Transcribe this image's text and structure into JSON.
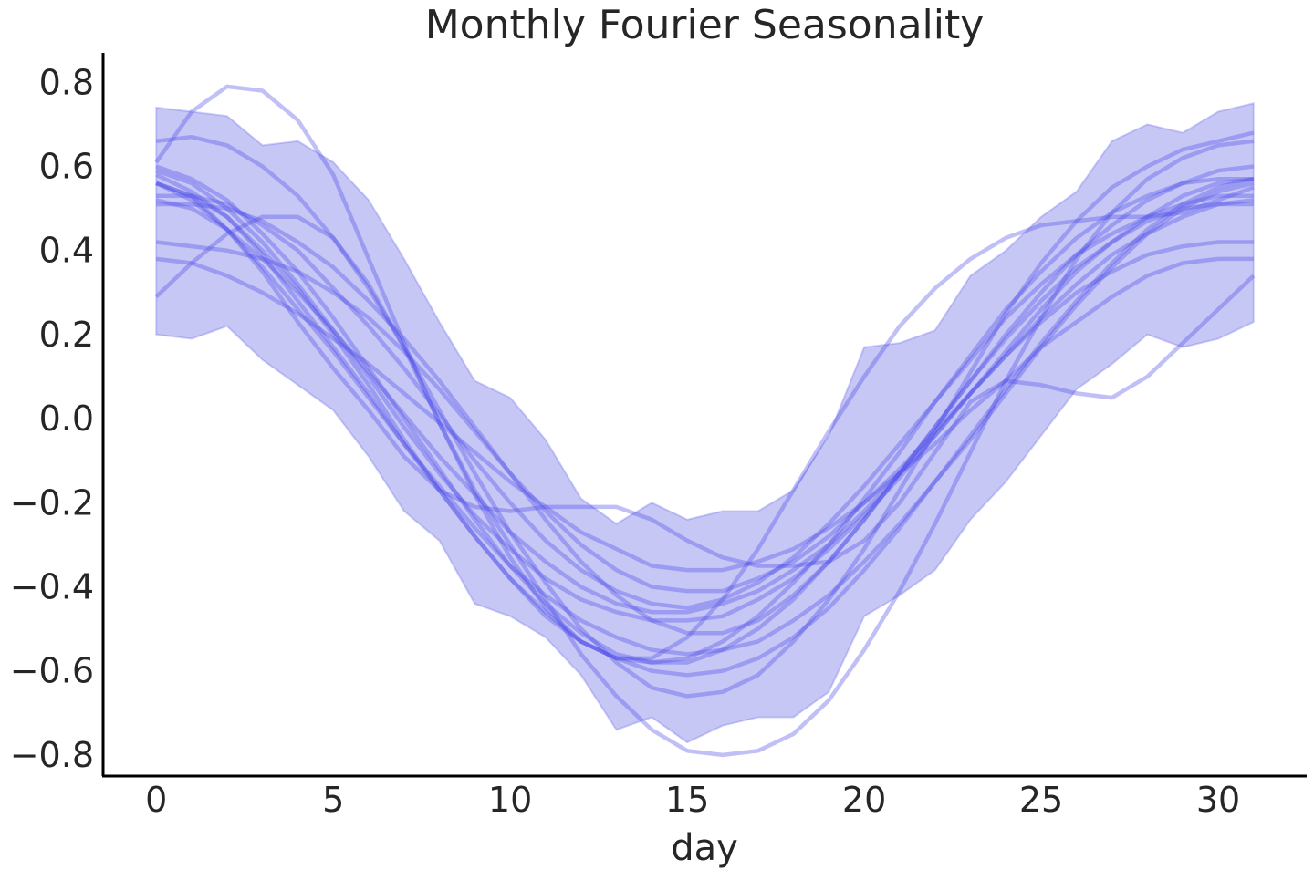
{
  "chart_data": {
    "type": "line",
    "title": "Monthly Fourier Seasonality",
    "xlabel": "day",
    "ylabel": "",
    "xlim": [
      -1.5,
      32.5
    ],
    "ylim": [
      -0.85,
      0.87
    ],
    "xticks": [
      0,
      5,
      10,
      15,
      20,
      25,
      30
    ],
    "yticks": [
      0.8,
      0.6,
      0.4,
      0.2,
      0.0,
      -0.2,
      -0.4,
      -0.6,
      -0.8
    ],
    "ytick_labels": [
      "0.8",
      "0.6",
      "0.4",
      "0.2",
      "0.0",
      "−0.2",
      "−0.4",
      "−0.6",
      "−0.8"
    ],
    "grid": false,
    "colors": {
      "line": "#4a4ae8",
      "band": "#9999ee",
      "axis": "#000000"
    },
    "x": [
      0,
      1,
      2,
      3,
      4,
      5,
      6,
      7,
      8,
      9,
      10,
      11,
      12,
      13,
      14,
      15,
      16,
      17,
      18,
      19,
      20,
      21,
      22,
      23,
      24,
      25,
      26,
      27,
      28,
      29,
      30,
      31
    ],
    "band": {
      "upper": [
        0.74,
        0.73,
        0.72,
        0.65,
        0.66,
        0.61,
        0.52,
        0.38,
        0.23,
        0.09,
        0.05,
        -0.05,
        -0.19,
        -0.25,
        -0.2,
        -0.24,
        -0.22,
        -0.22,
        -0.17,
        -0.04,
        0.17,
        0.18,
        0.21,
        0.34,
        0.4,
        0.48,
        0.54,
        0.66,
        0.7,
        0.68,
        0.73,
        0.75
      ],
      "lower": [
        0.2,
        0.19,
        0.22,
        0.14,
        0.08,
        0.02,
        -0.09,
        -0.22,
        -0.29,
        -0.44,
        -0.47,
        -0.52,
        -0.61,
        -0.74,
        -0.71,
        -0.77,
        -0.73,
        -0.71,
        -0.71,
        -0.65,
        -0.47,
        -0.42,
        -0.36,
        -0.24,
        -0.15,
        -0.04,
        0.07,
        0.13,
        0.2,
        0.17,
        0.19,
        0.23
      ]
    },
    "series": [
      {
        "values": [
          0.61,
          0.73,
          0.79,
          0.78,
          0.71,
          0.58,
          0.38,
          0.18,
          -0.01,
          -0.17,
          -0.3,
          -0.43,
          -0.56,
          -0.66,
          -0.74,
          -0.79,
          -0.8,
          -0.79,
          -0.75,
          -0.67,
          -0.55,
          -0.41,
          -0.25,
          -0.08,
          0.09,
          0.24,
          0.38,
          0.49,
          0.57,
          0.62,
          0.65,
          0.66
        ]
      },
      {
        "values": [
          0.66,
          0.67,
          0.65,
          0.6,
          0.53,
          0.43,
          0.31,
          0.17,
          0.02,
          -0.13,
          -0.27,
          -0.39,
          -0.5,
          -0.58,
          -0.64,
          -0.66,
          -0.65,
          -0.61,
          -0.53,
          -0.43,
          -0.31,
          -0.17,
          -0.03,
          0.11,
          0.25,
          0.37,
          0.47,
          0.55,
          0.6,
          0.64,
          0.66,
          0.68
        ]
      },
      {
        "values": [
          0.59,
          0.56,
          0.5,
          0.42,
          0.32,
          0.21,
          0.1,
          -0.02,
          -0.13,
          -0.23,
          -0.31,
          -0.38,
          -0.43,
          -0.46,
          -0.48,
          -0.48,
          -0.47,
          -0.43,
          -0.38,
          -0.31,
          -0.23,
          -0.14,
          -0.04,
          0.06,
          0.16,
          0.26,
          0.35,
          0.42,
          0.48,
          0.53,
          0.56,
          0.57
        ]
      },
      {
        "values": [
          0.56,
          0.52,
          0.45,
          0.36,
          0.26,
          0.16,
          0.05,
          -0.06,
          -0.16,
          -0.26,
          -0.35,
          -0.42,
          -0.48,
          -0.52,
          -0.55,
          -0.56,
          -0.55,
          -0.53,
          -0.48,
          -0.42,
          -0.34,
          -0.25,
          -0.15,
          -0.05,
          0.06,
          0.17,
          0.27,
          0.36,
          0.44,
          0.5,
          0.54,
          0.56
        ]
      },
      {
        "values": [
          0.53,
          0.53,
          0.51,
          0.46,
          0.4,
          0.31,
          0.22,
          0.12,
          0.01,
          -0.1,
          -0.2,
          -0.29,
          -0.36,
          -0.41,
          -0.44,
          -0.45,
          -0.43,
          -0.39,
          -0.33,
          -0.25,
          -0.16,
          -0.06,
          0.04,
          0.14,
          0.24,
          0.32,
          0.39,
          0.44,
          0.48,
          0.51,
          0.53,
          0.53
        ]
      },
      {
        "values": [
          0.51,
          0.51,
          0.5,
          0.47,
          0.42,
          0.36,
          0.28,
          0.19,
          0.09,
          -0.02,
          -0.13,
          -0.24,
          -0.34,
          -0.42,
          -0.48,
          -0.51,
          -0.51,
          -0.48,
          -0.42,
          -0.34,
          -0.24,
          -0.13,
          -0.02,
          0.09,
          0.19,
          0.28,
          0.36,
          0.42,
          0.47,
          0.5,
          0.51,
          0.51
        ]
      },
      {
        "values": [
          0.42,
          0.41,
          0.4,
          0.38,
          0.35,
          0.3,
          0.24,
          0.16,
          0.07,
          -0.03,
          -0.13,
          -0.22,
          -0.3,
          -0.36,
          -0.4,
          -0.41,
          -0.41,
          -0.38,
          -0.34,
          -0.28,
          -0.2,
          -0.12,
          -0.03,
          0.06,
          0.15,
          0.23,
          0.3,
          0.35,
          0.39,
          0.41,
          0.42,
          0.42
        ]
      },
      {
        "values": [
          0.38,
          0.37,
          0.34,
          0.3,
          0.25,
          0.19,
          0.13,
          0.06,
          -0.01,
          -0.08,
          -0.15,
          -0.21,
          -0.27,
          -0.31,
          -0.35,
          -0.36,
          -0.36,
          -0.34,
          -0.31,
          -0.26,
          -0.2,
          -0.13,
          -0.06,
          0.02,
          0.09,
          0.17,
          0.23,
          0.29,
          0.34,
          0.37,
          0.38,
          0.38
        ]
      },
      {
        "values": [
          0.56,
          0.53,
          0.48,
          0.4,
          0.31,
          0.2,
          0.08,
          -0.05,
          -0.17,
          -0.28,
          -0.38,
          -0.47,
          -0.53,
          -0.57,
          -0.58,
          -0.57,
          -0.53,
          -0.47,
          -0.39,
          -0.3,
          -0.19,
          -0.08,
          0.04,
          0.15,
          0.26,
          0.35,
          0.43,
          0.49,
          0.53,
          0.56,
          0.57,
          0.57
        ]
      },
      {
        "values": [
          0.29,
          0.37,
          0.44,
          0.48,
          0.48,
          0.43,
          0.32,
          0.17,
          -0.01,
          -0.18,
          -0.33,
          -0.45,
          -0.53,
          -0.57,
          -0.57,
          -0.52,
          -0.43,
          -0.31,
          -0.17,
          -0.03,
          0.1,
          0.22,
          0.31,
          0.38,
          0.43,
          0.46,
          0.47,
          0.48,
          0.48,
          0.49,
          0.52,
          0.55
        ]
      },
      {
        "values": [
          0.56,
          0.53,
          0.45,
          0.35,
          0.23,
          0.12,
          0.02,
          -0.09,
          -0.17,
          -0.21,
          -0.22,
          -0.21,
          -0.21,
          -0.21,
          -0.24,
          -0.29,
          -0.33,
          -0.35,
          -0.35,
          -0.34,
          -0.29,
          -0.2,
          -0.08,
          0.04,
          0.09,
          0.08,
          0.06,
          0.05,
          0.1,
          0.18,
          0.26,
          0.34
        ]
      },
      {
        "values": [
          0.58,
          0.54,
          0.48,
          0.39,
          0.28,
          0.17,
          0.06,
          -0.06,
          -0.17,
          -0.28,
          -0.38,
          -0.46,
          -0.53,
          -0.57,
          -0.6,
          -0.61,
          -0.6,
          -0.57,
          -0.52,
          -0.45,
          -0.36,
          -0.26,
          -0.15,
          -0.04,
          0.07,
          0.18,
          0.28,
          0.37,
          0.45,
          0.51,
          0.55,
          0.57
        ]
      },
      {
        "values": [
          0.52,
          0.5,
          0.45,
          0.38,
          0.3,
          0.21,
          0.11,
          0.01,
          -0.09,
          -0.18,
          -0.27,
          -0.34,
          -0.4,
          -0.44,
          -0.46,
          -0.46,
          -0.44,
          -0.41,
          -0.36,
          -0.3,
          -0.22,
          -0.13,
          -0.04,
          0.06,
          0.15,
          0.24,
          0.32,
          0.39,
          0.44,
          0.48,
          0.51,
          0.52
        ]
      },
      {
        "values": [
          0.6,
          0.57,
          0.52,
          0.44,
          0.35,
          0.24,
          0.12,
          0.0,
          -0.12,
          -0.24,
          -0.35,
          -0.44,
          -0.51,
          -0.56,
          -0.58,
          -0.58,
          -0.55,
          -0.5,
          -0.43,
          -0.34,
          -0.24,
          -0.13,
          -0.02,
          0.09,
          0.2,
          0.3,
          0.39,
          0.46,
          0.52,
          0.56,
          0.59,
          0.6
        ]
      }
    ]
  }
}
